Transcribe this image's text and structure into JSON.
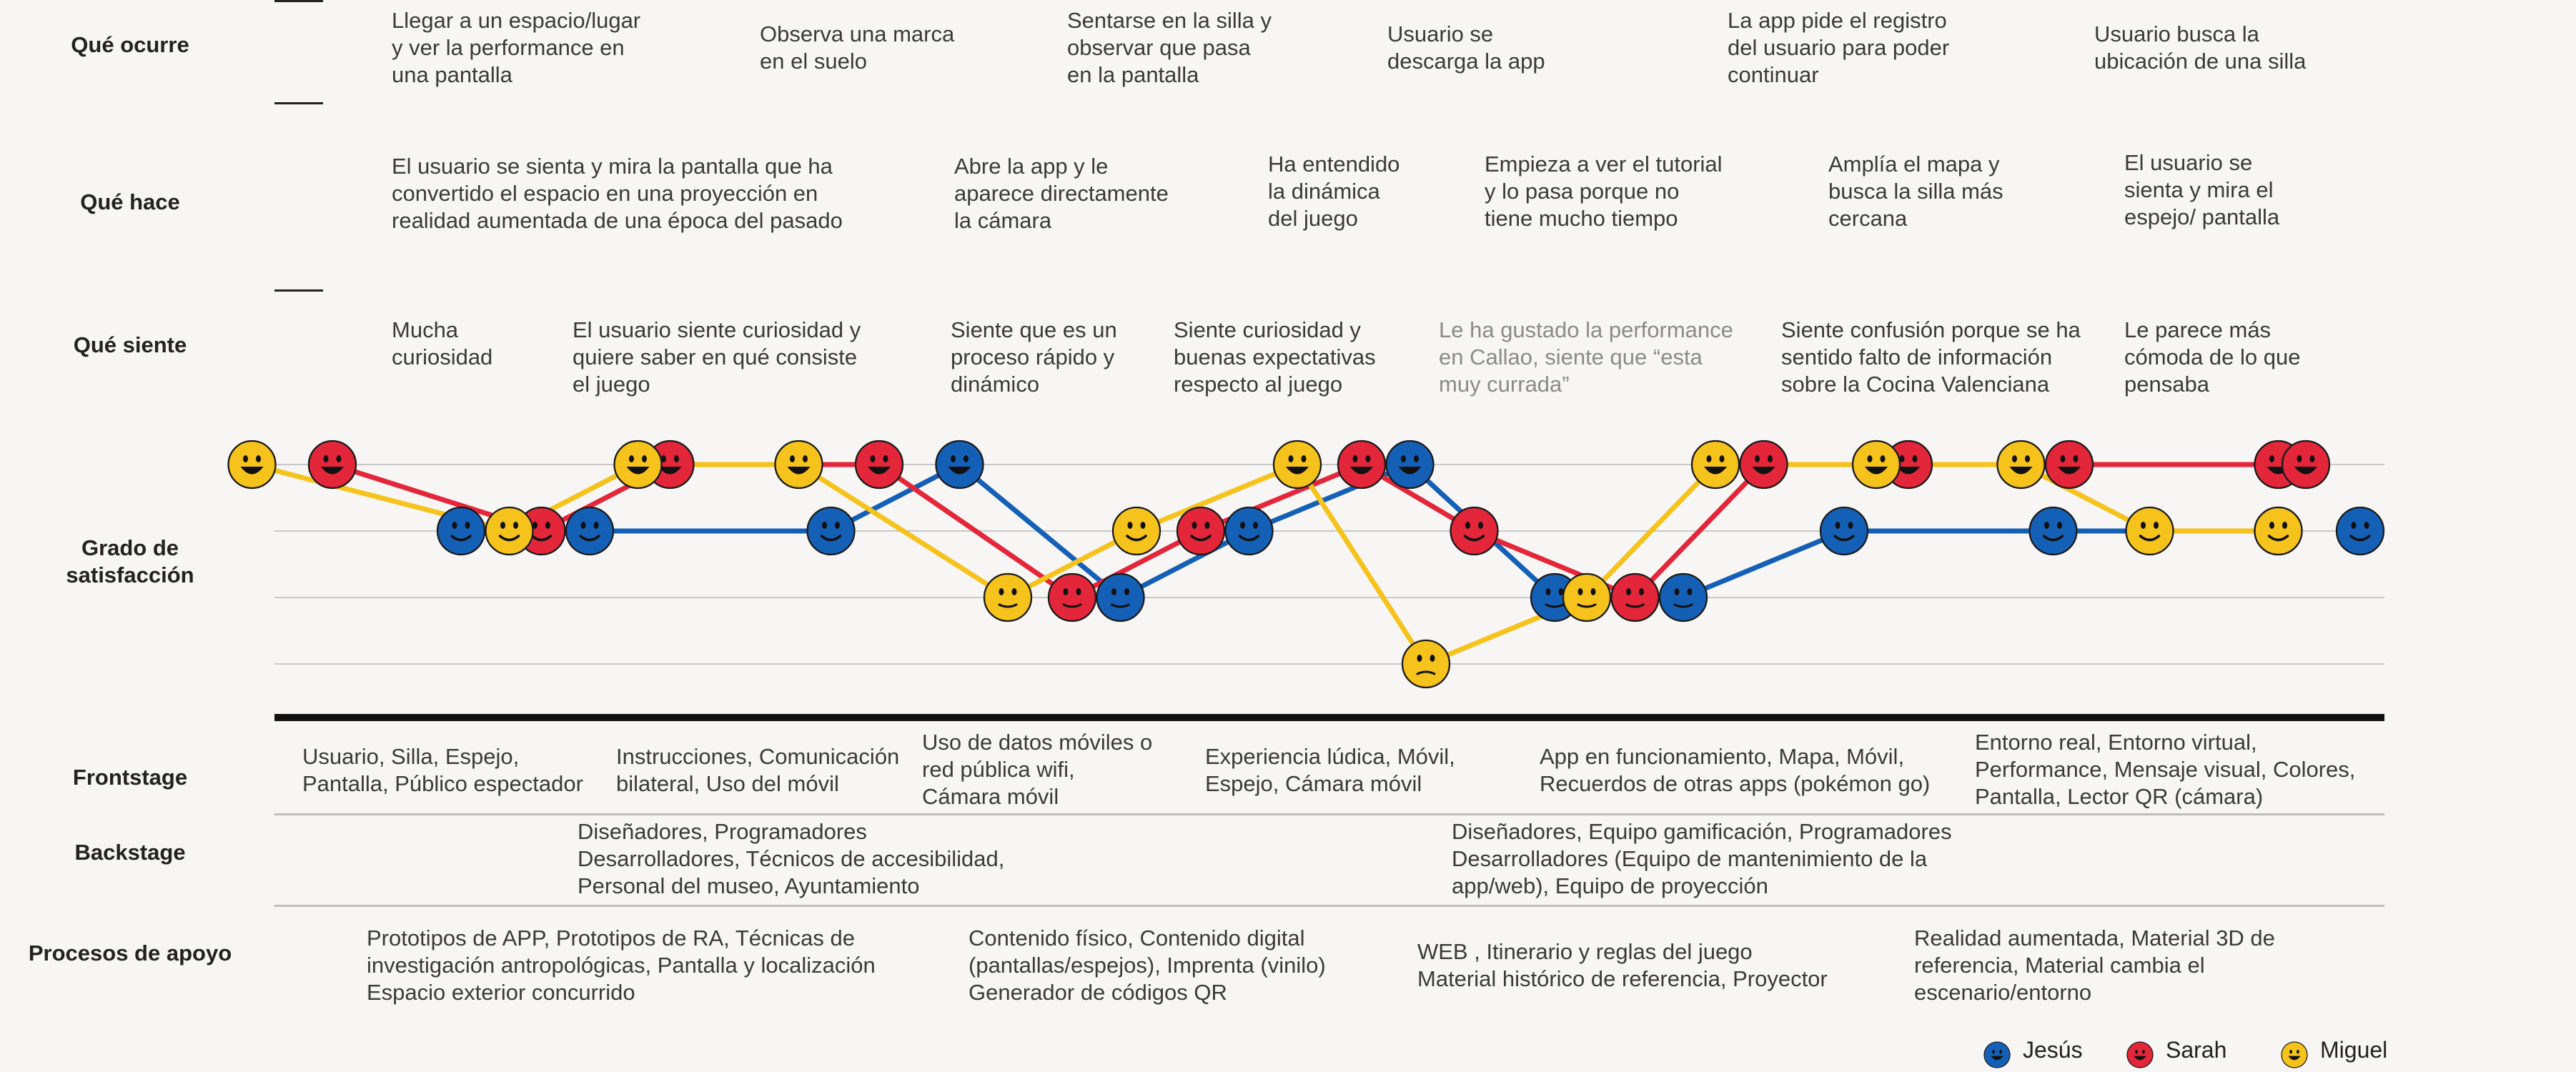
{
  "rows": {
    "que_ocurre": "Qué ocurre",
    "que_hace": "Qué hace",
    "que_siente": "Qué siente",
    "grado": "Grado de\nsatisfacción",
    "frontstage": "Frontstage",
    "backstage": "Backstage",
    "procesos": "Procesos de apoyo"
  },
  "ocurre": [
    "Llegar a un espacio/lugar\ny ver la performance en\nuna pantalla",
    "Observa una marca\nen el suelo",
    "Sentarse en la silla y\nobservar que pasa\nen la pantalla",
    "Usuario se\ndescarga la app",
    "La app pide el registro\ndel usuario para poder\ncontinuar",
    "Usuario busca la\nubicación de una silla"
  ],
  "hace": [
    "El usuario se sienta y mira la pantalla que ha\nconvertido el espacio en una proyección en\nrealidad aumentada de una época del pasado",
    "Abre la app y le\naparece directamente\nla cámara",
    "Ha entendido\nla dinámica\ndel juego",
    "Empieza a ver el tutorial\ny lo pasa porque no\ntiene mucho tiempo",
    "Amplía el mapa y\nbusca la silla más\ncercana",
    "El usuario se\nsienta y mira el\nespejo/ pantalla"
  ],
  "siente": [
    "Mucha\ncuriosidad",
    "El usuario siente curiosidad y\nquiere saber en qué consiste\nel juego",
    "Siente que es un\nproceso rápido y\ndinámico",
    "Siente curiosidad y\nbuenas expectativas\nrespecto al juego",
    "Le ha gustado la performance\nen Callao, siente que “esta\nmuy currada”",
    "Siente confusión porque se ha\nsentido falto de información\nsobre la Cocina Valenciana",
    "Le parece más\ncómoda de lo que\npensaba"
  ],
  "frontstage": [
    "Usuario, Silla, Espejo,\nPantalla, Público espectador",
    "Instrucciones, Comunicación\nbilateral, Uso del móvil",
    "Uso de datos móviles o\nred pública wifi,\nCámara móvil",
    "Experiencia lúdica, Móvil,\nEspejo, Cámara móvil",
    "App en funcionamiento, Mapa, Móvil,\nRecuerdos de otras apps (pokémon go)",
    "Entorno real, Entorno virtual,\nPerformance, Mensaje visual, Colores,\nPantalla, Lector QR (cámara)"
  ],
  "backstage": [
    "Diseñadores, Programadores\nDesarrolladores, Técnicos de accesibilidad,\nPersonal del museo, Ayuntamiento",
    "Diseñadores, Equipo gamificación, Programadores\nDesarrolladores (Equipo de mantenimiento de la\napp/web), Equipo de proyección"
  ],
  "procesos": [
    "Prototipos de APP, Prototipos de RA, Técnicas de\ninvestigación antropológicas, Pantalla y localización\nEspacio exterior concurrido",
    "Contenido físico, Contenido digital\n(pantallas/espejos), Imprenta (vinilo)\nGenerador de códigos QR",
    "WEB , Itinerario y reglas del juego\nMaterial histórico de referencia, Proyector",
    "Realidad aumentada, Material 3D de\nreferencia, Material cambia el\nescenario/entorno"
  ],
  "legend": [
    {
      "name": "Jesús",
      "color": "#1560b7",
      "icon": "smiley-icon"
    },
    {
      "name": "Sarah",
      "color": "#e3263a",
      "icon": "smiley-icon"
    },
    {
      "name": "Miguel",
      "color": "#f6c21c",
      "icon": "smiley-icon"
    }
  ],
  "chart_data": {
    "type": "line",
    "y_levels": 4,
    "series": [
      {
        "name": "Jesús",
        "color": "#1560b7",
        "points": [
          [
            1.0,
            3
          ],
          [
            1.8,
            3
          ],
          [
            3.3,
            3
          ],
          [
            4.1,
            4
          ],
          [
            5.1,
            2
          ],
          [
            5.9,
            3
          ],
          [
            6.9,
            4
          ],
          [
            7.8,
            2
          ],
          [
            8.6,
            2
          ],
          [
            9.6,
            3
          ],
          [
            10.9,
            3
          ],
          [
            12.3,
            3
          ]
        ]
      },
      {
        "name": "Sarah",
        "color": "#e3263a",
        "points": [
          [
            0.2,
            4
          ],
          [
            1.5,
            3
          ],
          [
            2.3,
            4
          ],
          [
            3.6,
            4
          ],
          [
            4.8,
            2
          ],
          [
            5.6,
            3
          ],
          [
            6.6,
            4
          ],
          [
            7.3,
            3
          ],
          [
            8.3,
            2
          ],
          [
            9.1,
            4
          ],
          [
            10.0,
            4
          ],
          [
            11.0,
            4
          ],
          [
            12.3,
            4
          ]
        ]
      },
      {
        "name": "Miguel",
        "color": "#f6c21c",
        "points": [
          [
            -0.3,
            4
          ],
          [
            1.3,
            3
          ],
          [
            2.1,
            4
          ],
          [
            3.1,
            4
          ],
          [
            4.4,
            2
          ],
          [
            5.2,
            3
          ],
          [
            6.2,
            4
          ],
          [
            7.0,
            1
          ],
          [
            8.0,
            2
          ],
          [
            8.8,
            4
          ],
          [
            9.8,
            4
          ],
          [
            10.7,
            4
          ],
          [
            11.5,
            3
          ],
          [
            12.3,
            3
          ]
        ]
      }
    ]
  }
}
